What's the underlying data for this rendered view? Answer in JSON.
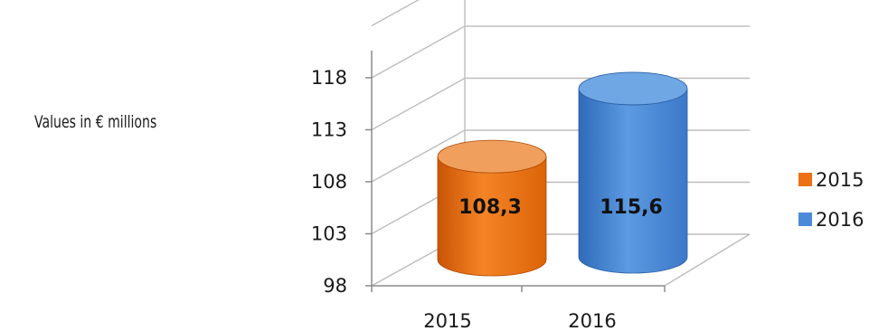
{
  "chart_data": {
    "type": "bar",
    "style": "3d-cylinder",
    "categories": [
      "2015",
      "2016"
    ],
    "series": [
      {
        "name": "2015",
        "values": [
          108.3,
          null
        ],
        "color": "#ED7014"
      },
      {
        "name": "2016",
        "values": [
          null,
          115.6
        ],
        "color": "#4A8AD8"
      }
    ],
    "data_labels": [
      "108,3",
      "115,6"
    ],
    "yticks": [
      "98",
      "103",
      "108",
      "113",
      "118"
    ],
    "ylim": [
      98,
      123
    ],
    "unit_note": "Values in € millions",
    "legend": {
      "position": "right",
      "entries": [
        "2015",
        "2016"
      ]
    },
    "grid": true
  }
}
